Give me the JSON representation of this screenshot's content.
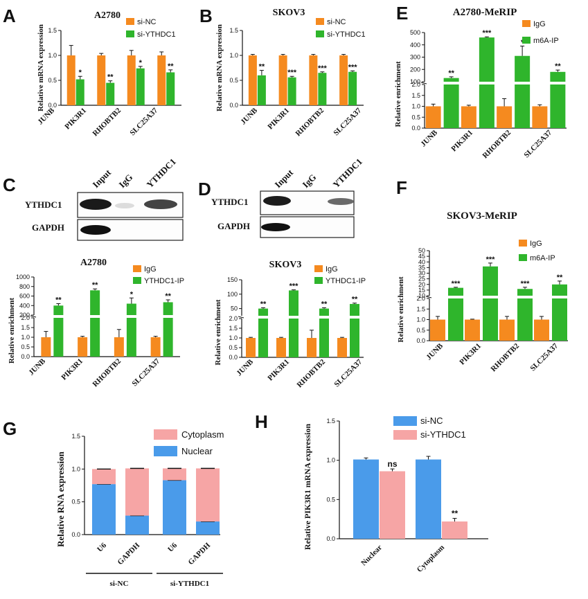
{
  "colors": {
    "orange": "#f58a1f",
    "green": "#2fb52c",
    "blue": "#4a9bea",
    "pink": "#f6a5a5"
  },
  "panels": {
    "a": "A",
    "b": "B",
    "c": "C",
    "d": "D",
    "e": "E",
    "f": "F",
    "g": "G",
    "h": "H"
  },
  "blots": {
    "c": {
      "lanes": [
        "Input",
        "IgG",
        "YTHDC1"
      ],
      "rows": [
        "YTHDC1",
        "GAPDH"
      ]
    },
    "d": {
      "lanes": [
        "Input",
        "IgG",
        "YTHDC1"
      ],
      "rows": [
        "YTHDC1",
        "GAPDH"
      ]
    }
  },
  "chart_data": [
    {
      "id": "A",
      "type": "bar",
      "title": "A2780",
      "ylabel": "Relative mRNA expression",
      "categories": [
        "JUNB",
        "PIK3R1",
        "RHOBTB2",
        "SLC25A37"
      ],
      "ylim": [
        0,
        1.5
      ],
      "yticks": [
        "0.0",
        "0.5",
        "1.0",
        "1.5"
      ],
      "ytickvals": [
        0,
        0.5,
        1.0,
        1.5
      ],
      "series": [
        {
          "name": "si-NC",
          "color": "orange",
          "values": [
            1.0,
            1.0,
            1.0,
            1.0
          ],
          "err": [
            0.2,
            0.04,
            0.1,
            0.07
          ]
        },
        {
          "name": "si-YTHDC1",
          "color": "green",
          "values": [
            0.52,
            0.45,
            0.74,
            0.66
          ],
          "err": [
            0.06,
            0.04,
            0.04,
            0.05
          ]
        }
      ],
      "sig": [
        "*",
        "**",
        "*",
        "**"
      ]
    },
    {
      "id": "B",
      "type": "bar",
      "title": "SKOV3",
      "ylabel": "Relative mRNA expression",
      "categories": [
        "JUNB",
        "PIK3R1",
        "RHOBTB2",
        "SLC25A37"
      ],
      "ylim": [
        0,
        1.5
      ],
      "yticks": [
        "0.0",
        "0.5",
        "1.0",
        "1.5"
      ],
      "ytickvals": [
        0,
        0.5,
        1.0,
        1.5
      ],
      "series": [
        {
          "name": "si-NC",
          "color": "orange",
          "values": [
            1.0,
            1.0,
            1.0,
            1.0
          ],
          "err": [
            0.02,
            0.02,
            0.02,
            0.02
          ]
        },
        {
          "name": "si-YTHDC1",
          "color": "green",
          "values": [
            0.6,
            0.56,
            0.65,
            0.67
          ],
          "err": [
            0.1,
            0.02,
            0.02,
            0.02
          ]
        }
      ],
      "sig": [
        "**",
        "***",
        "***",
        "***"
      ]
    },
    {
      "id": "E",
      "type": "bar",
      "title": "A2780-MeRIP",
      "ylabel": "Relative enrichment",
      "broken_axis": true,
      "categories": [
        "JUNB",
        "PIK3R1",
        "RHOBTB2",
        "SLC25A37"
      ],
      "lower": {
        "ylim": [
          0,
          2.0
        ],
        "yticks": [
          "0.0",
          "0.5",
          "1.0",
          "1.5",
          "2.0"
        ],
        "ytickvals": [
          0,
          0.5,
          1.0,
          1.5,
          2.0
        ]
      },
      "upper": {
        "ylim": [
          100,
          500
        ],
        "yticks": [
          "100",
          "200",
          "300",
          "400",
          "500"
        ],
        "ytickvals": [
          100,
          200,
          300,
          400,
          500
        ]
      },
      "series": [
        {
          "name": "IgG",
          "color": "orange",
          "values": [
            1.0,
            1.0,
            1.0,
            1.0
          ],
          "err": [
            0.1,
            0.05,
            0.35,
            0.07
          ]
        },
        {
          "name": "m6A-IP",
          "color": "green",
          "values": [
            130,
            460,
            310,
            180
          ],
          "err": [
            10,
            5,
            80,
            15
          ]
        }
      ],
      "sig": [
        "**",
        "***",
        "*",
        "**"
      ]
    },
    {
      "id": "C",
      "type": "bar",
      "title": "A2780",
      "ylabel": "Relative enrichment",
      "broken_axis": true,
      "categories": [
        "JUNB",
        "PIK3R1",
        "RHOBTB2",
        "SLC25A37"
      ],
      "lower": {
        "ylim": [
          0,
          2.0
        ],
        "yticks": [
          "0.0",
          "0.5",
          "1.0",
          "1.5",
          "2.0"
        ],
        "ytickvals": [
          0,
          0.5,
          1.0,
          1.5,
          2.0
        ]
      },
      "upper": {
        "ylim": [
          200,
          1000
        ],
        "yticks": [
          "200",
          "400",
          "600",
          "800",
          "1000"
        ],
        "ytickvals": [
          200,
          400,
          600,
          800,
          1000
        ]
      },
      "series": [
        {
          "name": "IgG",
          "color": "orange",
          "values": [
            1.0,
            1.0,
            1.0,
            1.0
          ],
          "err": [
            0.3,
            0.05,
            0.4,
            0.05
          ]
        },
        {
          "name": "YTHDC1-IP",
          "color": "green",
          "values": [
            400,
            720,
            440,
            470
          ],
          "err": [
            40,
            30,
            120,
            50
          ]
        }
      ],
      "sig": [
        "**",
        "**",
        "*",
        "**"
      ]
    },
    {
      "id": "D",
      "type": "bar",
      "title": "SKOV3",
      "ylabel": "Relative enrichment",
      "broken_axis": true,
      "categories": [
        "JUNB",
        "PIK3R1",
        "RHOBTB2",
        "SLC25A37"
      ],
      "lower": {
        "ylim": [
          0,
          2.0
        ],
        "yticks": [
          "0.0",
          "0.5",
          "1.0",
          "1.5",
          "2.0"
        ],
        "ytickvals": [
          0,
          0.5,
          1.0,
          1.5,
          2.0
        ]
      },
      "upper": {
        "ylim": [
          25,
          150
        ],
        "yticks": [
          "50",
          "100",
          "150"
        ],
        "ytickvals": [
          50,
          100,
          150
        ]
      },
      "series": [
        {
          "name": "IgG",
          "color": "orange",
          "values": [
            1.0,
            1.0,
            1.0,
            1.0
          ],
          "err": [
            0.03,
            0.03,
            0.4,
            0.03
          ]
        },
        {
          "name": "YTHDC1-IP",
          "color": "green",
          "values": [
            50,
            113,
            50,
            66
          ],
          "err": [
            3,
            2,
            3,
            3
          ]
        }
      ],
      "sig": [
        "**",
        "***",
        "**",
        "**"
      ]
    },
    {
      "id": "F",
      "type": "bar",
      "title": "SKOV3-MeRIP",
      "ylabel": "Relative enrichment",
      "broken_axis": true,
      "categories": [
        "JUNB",
        "PIK3R1",
        "RHOBTB2",
        "SLC25A37"
      ],
      "lower": {
        "ylim": [
          0,
          2.0
        ],
        "yticks": [
          "0.0",
          "0.5",
          "1.0",
          "1.5",
          "2.0"
        ],
        "ytickvals": [
          0,
          0.5,
          1.0,
          1.5,
          2.0
        ]
      },
      "upper": {
        "ylim": [
          10,
          50
        ],
        "yticks": [
          "10",
          "15",
          "20",
          "25",
          "30",
          "35",
          "40",
          "45",
          "50"
        ],
        "ytickvals": [
          10,
          15,
          20,
          25,
          30,
          35,
          40,
          45,
          50
        ]
      },
      "series": [
        {
          "name": "IgG",
          "color": "orange",
          "values": [
            1.0,
            1.0,
            1.0,
            1.0
          ],
          "err": [
            0.15,
            0.02,
            0.15,
            0.15
          ]
        },
        {
          "name": "m6A-IP",
          "color": "green",
          "values": [
            17,
            36,
            16,
            20
          ],
          "err": [
            0.5,
            3,
            1.5,
            3
          ]
        }
      ],
      "sig": [
        "***",
        "***",
        "***",
        "**"
      ]
    },
    {
      "id": "G",
      "type": "bar",
      "stacked": true,
      "ylabel": "Relative RNA expression",
      "categories": [
        "U6",
        "GAPDH",
        "U6",
        "GAPDH"
      ],
      "groups": [
        {
          "label": "si-NC",
          "span": [
            0,
            1
          ]
        },
        {
          "label": "si-YTHDC1",
          "span": [
            2,
            3
          ]
        }
      ],
      "ylim": [
        0,
        1.5
      ],
      "yticks": [
        "0.0",
        "0.5",
        "1.0",
        "1.5"
      ],
      "ytickvals": [
        0,
        0.5,
        1.0,
        1.5
      ],
      "series": [
        {
          "name": "Nuclear",
          "color": "blue",
          "values": [
            0.77,
            0.29,
            0.83,
            0.2
          ]
        },
        {
          "name": "Cytoplasm",
          "color": "pink",
          "values": [
            0.23,
            0.72,
            0.18,
            0.81
          ]
        }
      ]
    },
    {
      "id": "H",
      "type": "bar",
      "ylabel": "Relative PIK3R1 mRNA expression",
      "categories": [
        "Nuclear",
        "Cytoplasm"
      ],
      "ylim": [
        0,
        1.5
      ],
      "yticks": [
        "0.0",
        "0.5",
        "1.0",
        "1.5"
      ],
      "ytickvals": [
        0,
        0.5,
        1.0,
        1.5
      ],
      "series": [
        {
          "name": "si-NC",
          "color": "blue",
          "values": [
            1.01,
            1.01
          ],
          "err": [
            0.02,
            0.04
          ]
        },
        {
          "name": "si-YTHDC1",
          "color": "pink",
          "values": [
            0.86,
            0.22
          ],
          "err": [
            0.03,
            0.04
          ]
        }
      ],
      "sig": [
        "ns",
        "**"
      ]
    }
  ]
}
